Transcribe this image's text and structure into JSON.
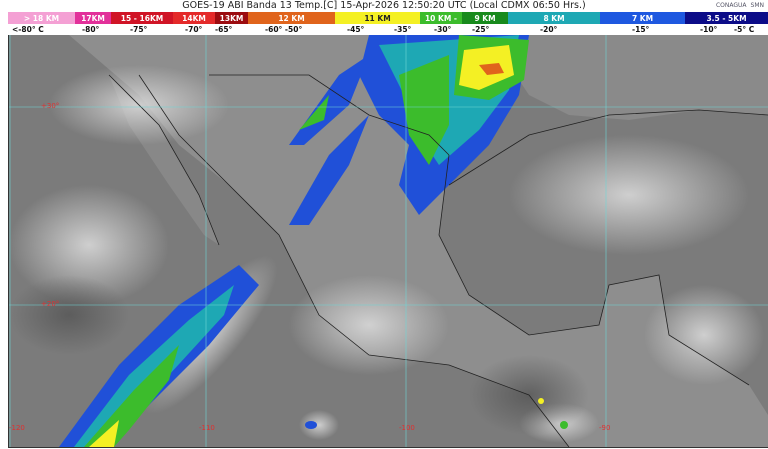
{
  "header": {
    "title": "GOES-19 ABI Banda 13 Temp.[C] 15-Apr-2026 12:50:20 UTC (Local CDMX  06:50 Hrs.)",
    "logos": [
      "CONAGUA",
      "SMN"
    ]
  },
  "legend": {
    "segments": [
      {
        "label": "> 18 KM",
        "color": "#f4a0d4"
      },
      {
        "label": "17KM",
        "color": "#e2309a"
      },
      {
        "label": "15 - 16KM",
        "color": "#d01426"
      },
      {
        "label": "14KM",
        "color": "#e42a2a"
      },
      {
        "label": "13KM",
        "color": "#9c0c10"
      },
      {
        "label": "12 KM",
        "color": "#e0641c"
      },
      {
        "label": "11 KM",
        "color": "#f4f024"
      },
      {
        "label": "10 KM -",
        "color": "#3cbc2c"
      },
      {
        "label": "9 KM",
        "color": "#188a1c"
      },
      {
        "label": "8 KM",
        "color": "#1ea8b4"
      },
      {
        "label": "7 KM",
        "color": "#1e58e0"
      },
      {
        "label": "3.5 - 5KM",
        "color": "#0c0c88"
      }
    ],
    "temps": [
      "<-80° C",
      "-80°",
      "-75°",
      "-70°",
      "-65°",
      "-60°  -50°",
      "-45°",
      "-35°",
      "-30°",
      "-25°",
      "-20°",
      "-15°",
      "-10°",
      "-5°  C"
    ]
  },
  "map": {
    "lat_labels": [
      "+30°",
      "+20°"
    ],
    "lon_labels": [
      "-120",
      "-110",
      "-100",
      "-90"
    ],
    "grid_color": "#6fd6d6",
    "label_color": "#e03030"
  }
}
